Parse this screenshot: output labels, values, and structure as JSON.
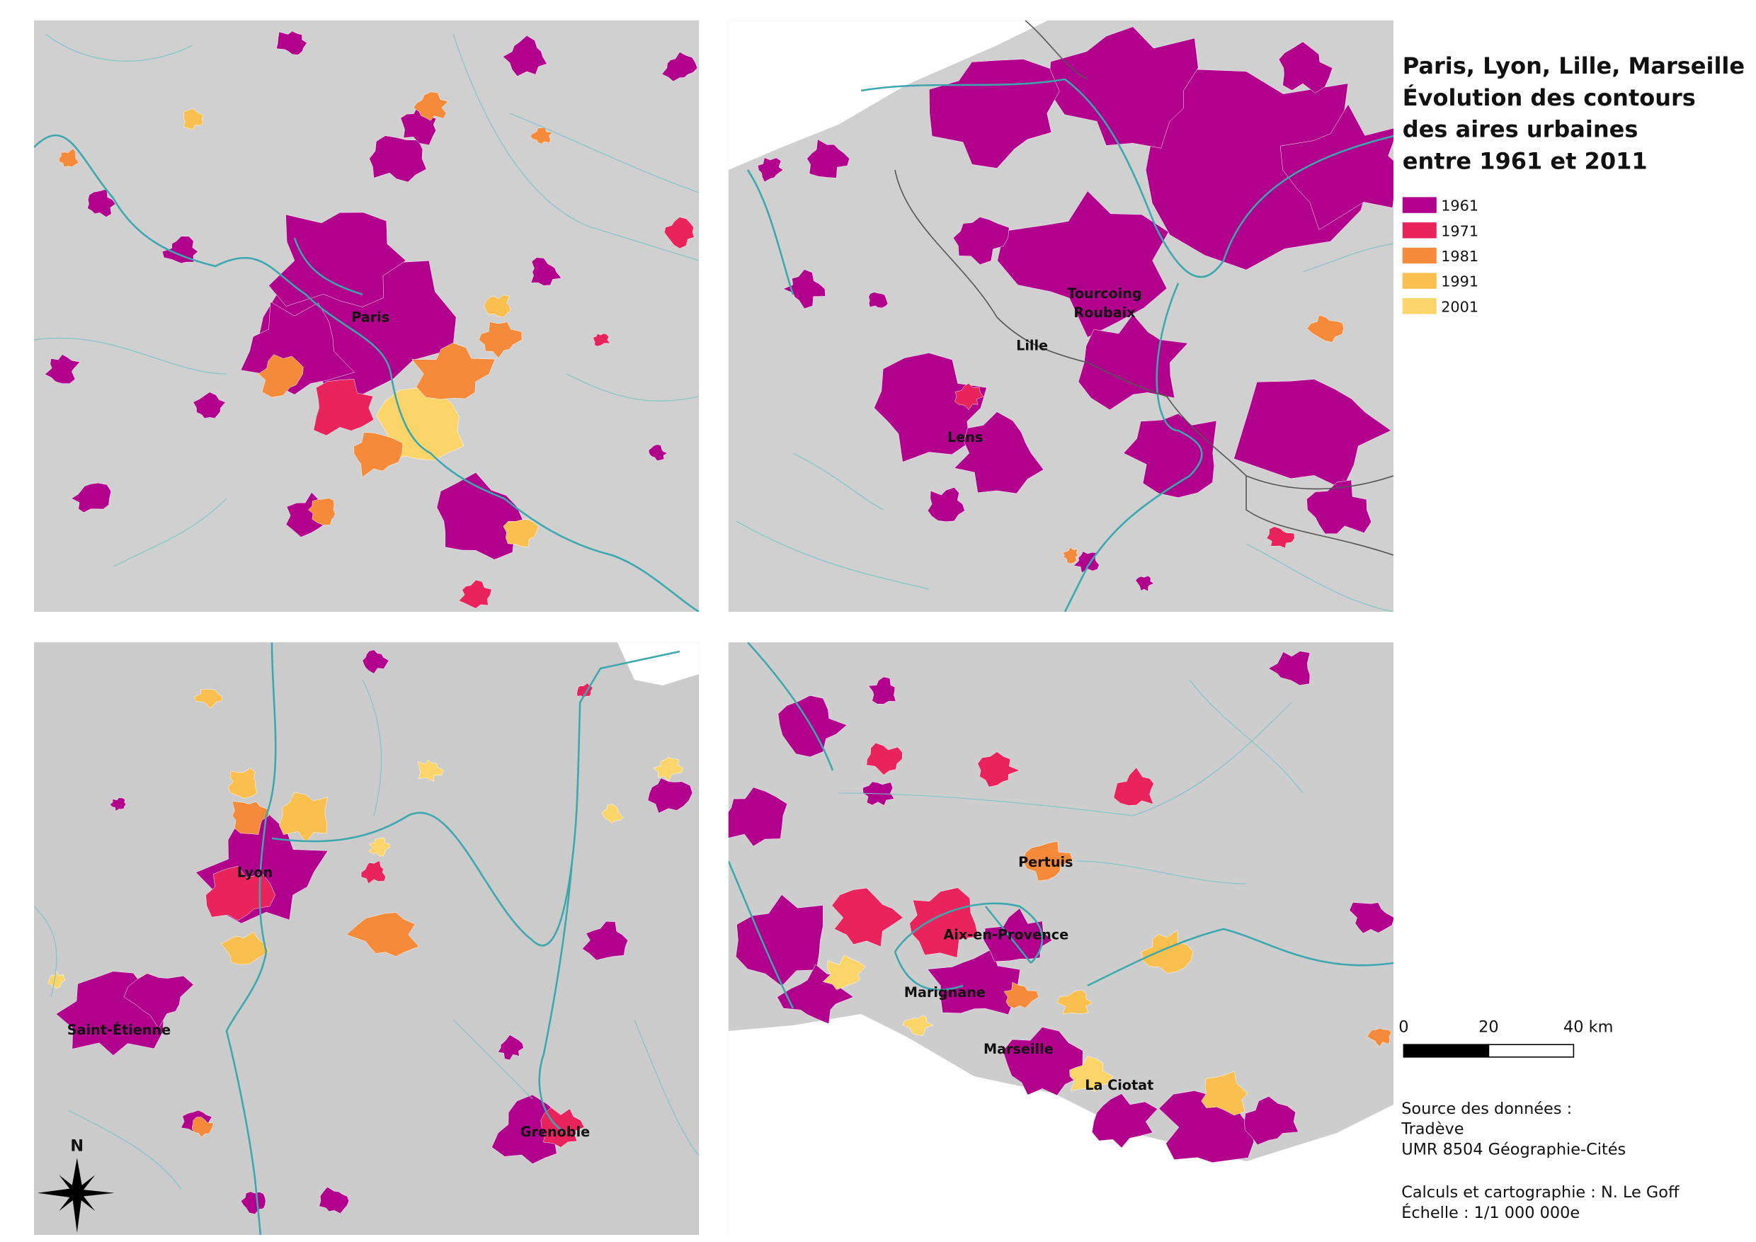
{
  "title": [
    "Paris, Lyon, Lille, Marseille",
    "Évolution des contours",
    "des aires urbaines",
    "entre 1961 et 2011"
  ],
  "legend": [
    {
      "label": "1961",
      "color": "#b1008c"
    },
    {
      "label": "1971",
      "color": "#e9245c"
    },
    {
      "label": "1981",
      "color": "#f68a3b"
    },
    {
      "label": "1991",
      "color": "#f9c04f"
    },
    {
      "label": "2001",
      "color": "#fcd56a"
    }
  ],
  "maps": [
    {
      "cities": [
        "Paris"
      ]
    },
    {
      "cities": [
        "Tourcoing",
        "Roubaix",
        "Lille",
        "Lens"
      ]
    },
    {
      "cities": [
        "Lyon",
        "Saint-Étienne",
        "Grenoble"
      ]
    },
    {
      "cities": [
        "Pertuis",
        "Aix-en-Provence",
        "Marignane",
        "Marseille",
        "La Ciotat"
      ]
    }
  ],
  "north": "N",
  "scale_bar": [
    "0",
    "20",
    "40 km"
  ],
  "source": [
    "Source des données :",
    "Tradève",
    "UMR 8504 Géographie-Cités",
    "Calculs et cartographie : N. Le Goff",
    "Échelle : 1/1 000 000e"
  ]
}
